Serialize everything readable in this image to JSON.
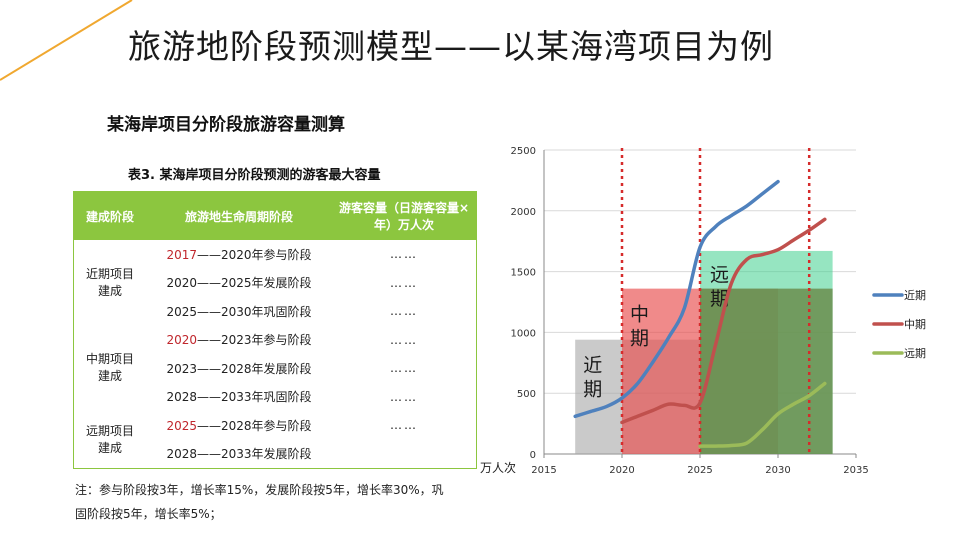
{
  "slide": {
    "title": "旅游地阶段预测模型——以某海湾项目为例",
    "subtitle": "某海岸项目分阶段旅游容量测算",
    "accent_color": "#f0a830"
  },
  "table": {
    "caption": "表3. 某海岸项目分阶段预测的游客最大容量",
    "header_color": "#8cc63f",
    "headers": [
      "建成阶段",
      "旅游地生命周期阶段",
      "游客容量（日游客容量×年）万人次"
    ],
    "groups": [
      {
        "stage": "近期项目建成",
        "rows": [
          {
            "year": "2017",
            "rest": "——2020年参与阶段",
            "highlight": true,
            "capacity": "……"
          },
          {
            "year": "2020",
            "rest": "——2025年发展阶段",
            "highlight": false,
            "capacity": "……"
          },
          {
            "year": "2025",
            "rest": "——2030年巩固阶段",
            "highlight": false,
            "capacity": "……"
          }
        ]
      },
      {
        "stage": "中期项目建成",
        "rows": [
          {
            "year": "2020",
            "rest": "——2023年参与阶段",
            "highlight": true,
            "capacity": "……"
          },
          {
            "year": "2023",
            "rest": "——2028年发展阶段",
            "highlight": false,
            "capacity": "……"
          },
          {
            "year": "2028",
            "rest": "——2033年巩固阶段",
            "highlight": false,
            "capacity": "……"
          }
        ]
      },
      {
        "stage": "远期项目建成",
        "rows": [
          {
            "year": "2025",
            "rest": "——2028年参与阶段",
            "highlight": true,
            "capacity": "……"
          },
          {
            "year": "2028",
            "rest": "——2033年发展阶段",
            "highlight": false,
            "capacity": ""
          }
        ]
      }
    ],
    "highlight_color": "#c0272d"
  },
  "footnote": "注：参与阶段按3年，增长率15%，发展阶段按5年，增长率30%，巩固阶段按5年，增长率5%；",
  "chart_data": {
    "type": "line",
    "ylabel": "万人次",
    "xlim": [
      2015,
      2035
    ],
    "ylim": [
      0,
      2500
    ],
    "x_ticks": [
      2015,
      2020,
      2025,
      2030,
      2035
    ],
    "y_ticks": [
      0,
      500,
      1000,
      1500,
      2000,
      2500
    ],
    "grid": true,
    "legend_position": "right",
    "series": [
      {
        "name": "近期",
        "color": "#4f81bd",
        "x": [
          2017,
          2018,
          2019,
          2020,
          2021,
          2022,
          2023,
          2024,
          2025,
          2026,
          2027,
          2028,
          2029,
          2030
        ],
        "y": [
          310,
          350,
          390,
          460,
          580,
          760,
          960,
          1200,
          1700,
          1870,
          1960,
          2040,
          2140,
          2240
        ]
      },
      {
        "name": "中期",
        "color": "#c0504d",
        "x": [
          2020,
          2021,
          2022,
          2023,
          2024,
          2025,
          2026,
          2027,
          2028,
          2029,
          2030,
          2031,
          2032,
          2033
        ],
        "y": [
          260,
          310,
          360,
          410,
          400,
          420,
          900,
          1400,
          1600,
          1640,
          1680,
          1760,
          1840,
          1930
        ]
      },
      {
        "name": "远期",
        "color": "#9bbb59",
        "x": [
          2025,
          2026,
          2027,
          2028,
          2029,
          2030,
          2031,
          2032,
          2033
        ],
        "y": [
          65,
          65,
          70,
          90,
          200,
          330,
          410,
          480,
          580
        ]
      }
    ],
    "period_boxes": [
      {
        "label": "近期",
        "x0": 2017,
        "x1": 2030,
        "y1": 940,
        "color": "#a6a6a6"
      },
      {
        "label": "中期",
        "x0": 2020,
        "x1": 2030,
        "y1": 1360,
        "color": "#e84c4c"
      },
      {
        "label": "远期",
        "x0": 2025,
        "x1": 2033.5,
        "y1": 1670,
        "color": "#3fcf8e"
      },
      {
        "x0": 2025,
        "x1": 2033.5,
        "y1": 1360,
        "color": "#6b8e4e"
      }
    ],
    "divider_years": [
      2020,
      2025,
      2032
    ],
    "divider_color": "#d62b2b"
  }
}
